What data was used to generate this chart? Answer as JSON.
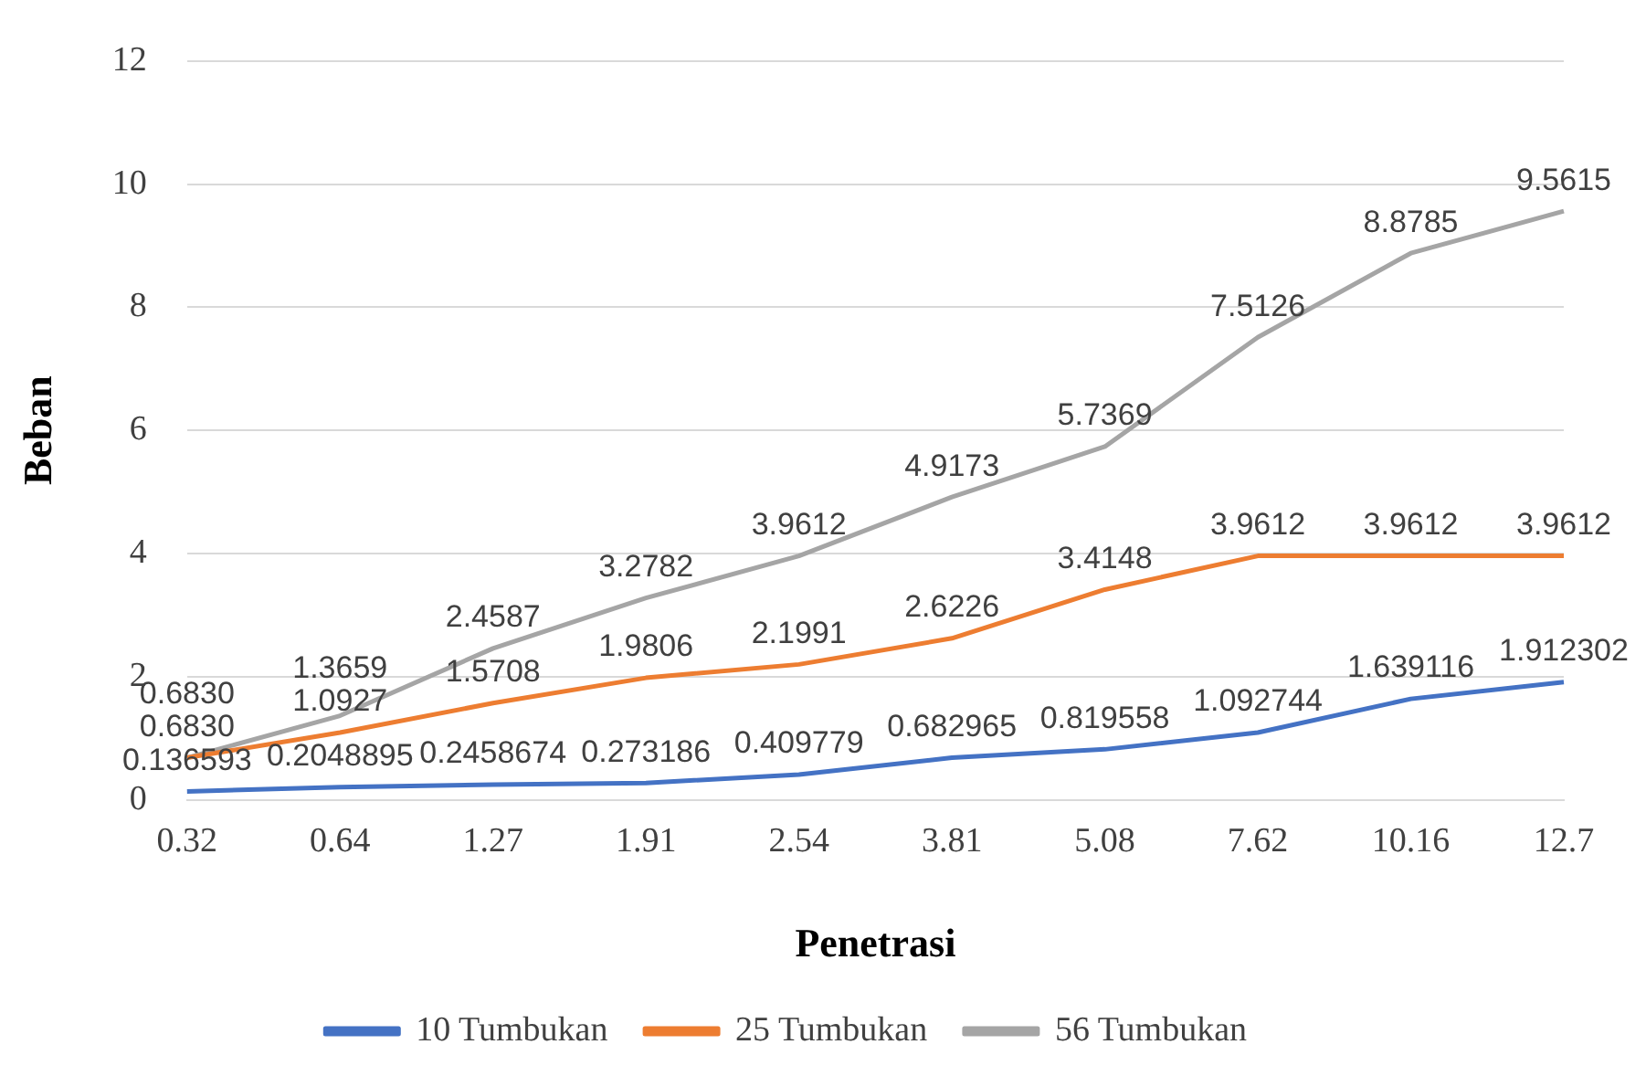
{
  "chart_data": {
    "type": "line",
    "xlabel": "Penetrasi",
    "ylabel": "Beban",
    "categories": [
      "0.32",
      "0.64",
      "1.27",
      "1.91",
      "2.54",
      "3.81",
      "5.08",
      "7.62",
      "10.16",
      "12.7"
    ],
    "series": [
      {
        "name": "10 Tumbukan",
        "color": "#4472c4",
        "values": [
          0.136593,
          0.2048895,
          0.2458674,
          0.273186,
          0.409779,
          0.682965,
          0.819558,
          1.092744,
          1.639116,
          1.912302
        ],
        "value_labels": [
          "0.136593",
          "0.2048895",
          "0.2458674",
          "0.273186",
          "0.409779",
          "0.682965",
          "0.819558",
          "1.092744",
          "1.639116",
          "1.912302"
        ]
      },
      {
        "name": "25 Tumbukan",
        "color": "#ed7d31",
        "values": [
          0.683,
          1.0927,
          1.5708,
          1.9806,
          2.1991,
          2.6226,
          3.4148,
          3.9612,
          3.9612,
          3.9612
        ],
        "value_labels": [
          "0.6830",
          "1.0927",
          "1.5708",
          "1.9806",
          "2.1991",
          "2.6226",
          "3.4148",
          "3.9612",
          "3.9612",
          "3.9612"
        ]
      },
      {
        "name": "56 Tumbukan",
        "color": "#a5a5a5",
        "values": [
          0.683,
          1.3659,
          2.4587,
          3.2782,
          3.9612,
          4.9173,
          5.7369,
          7.5126,
          8.8785,
          9.5615
        ],
        "value_labels": [
          "0.6830",
          "1.3659",
          "2.4587",
          "3.2782",
          "3.9612",
          "4.9173",
          "5.7369",
          "7.5126",
          "8.8785",
          "9.5615"
        ]
      }
    ],
    "ylim": [
      0,
      12
    ],
    "yticks": [
      0,
      2,
      4,
      6,
      8,
      10,
      12
    ],
    "grid": "y",
    "legend": "bottom",
    "marker": "none",
    "line_style": "solid"
  }
}
